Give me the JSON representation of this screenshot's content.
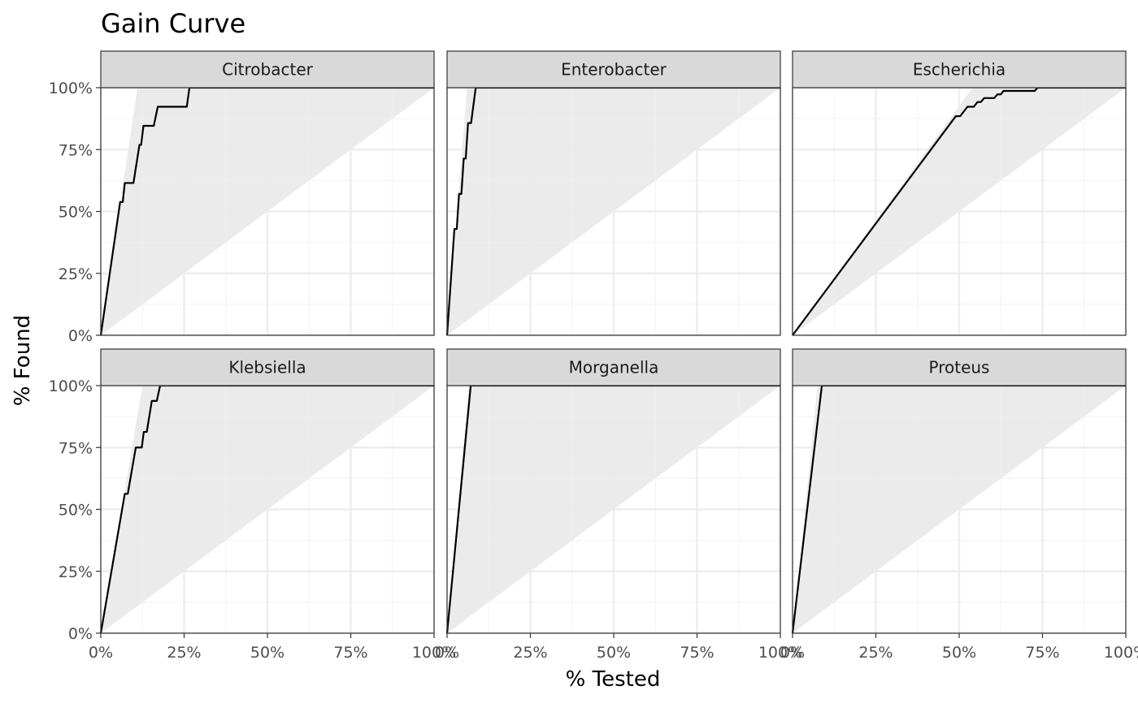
{
  "chart_data": {
    "type": "line",
    "title": "Gain Curve",
    "xlabel": "% Tested",
    "ylabel": "% Found",
    "xlim": [
      0,
      100
    ],
    "ylim": [
      0,
      100
    ],
    "grid": true,
    "x_tick_labels": [
      "0%",
      "25%",
      "50%",
      "75%",
      "100%"
    ],
    "y_tick_labels": [
      "0%",
      "25%",
      "50%",
      "75%",
      "100%"
    ],
    "colors": {
      "line": "#000000",
      "ribbon": "#ebebeb",
      "strip": "#d9d9d9",
      "grid_major": "#ebebeb",
      "grid_minor": "#f5f5f5",
      "border": "#333333"
    },
    "panels": [
      {
        "name": "Citrobacter",
        "optimal_x_at_100": 11,
        "series": [
          [
            0,
            0
          ],
          [
            5.8,
            53.8
          ],
          [
            6.6,
            53.8
          ],
          [
            7.2,
            61.5
          ],
          [
            9.8,
            61.5
          ],
          [
            11.6,
            76.9
          ],
          [
            12.1,
            76.9
          ],
          [
            12.8,
            84.6
          ],
          [
            15.9,
            84.6
          ],
          [
            17.1,
            92.3
          ],
          [
            25.8,
            92.3
          ],
          [
            26.6,
            100
          ],
          [
            100,
            100
          ]
        ]
      },
      {
        "name": "Enterobacter",
        "optimal_x_at_100": 6,
        "series": [
          [
            0,
            0
          ],
          [
            2.2,
            42.9
          ],
          [
            2.9,
            42.9
          ],
          [
            3.6,
            57.1
          ],
          [
            4.3,
            57.1
          ],
          [
            5.0,
            71.4
          ],
          [
            5.6,
            71.4
          ],
          [
            6.3,
            85.7
          ],
          [
            7.2,
            85.7
          ],
          [
            8.6,
            100
          ],
          [
            100,
            100
          ]
        ]
      },
      {
        "name": "Escherichia",
        "optimal_x_at_100": 54,
        "series": [
          [
            0,
            0
          ],
          [
            49,
            88.5
          ],
          [
            50.3,
            88.5
          ],
          [
            52.5,
            92.3
          ],
          [
            54.4,
            92.3
          ],
          [
            55.5,
            94.2
          ],
          [
            56.5,
            94.2
          ],
          [
            57.5,
            95.8
          ],
          [
            60.5,
            95.8
          ],
          [
            61.5,
            97.3
          ],
          [
            62.5,
            97.3
          ],
          [
            63.3,
            98.7
          ],
          [
            72.7,
            98.7
          ],
          [
            73.5,
            100
          ],
          [
            100,
            100
          ]
        ]
      },
      {
        "name": "Klebsiella",
        "optimal_x_at_100": 12.5,
        "series": [
          [
            0,
            0
          ],
          [
            7.2,
            56.3
          ],
          [
            8.1,
            56.3
          ],
          [
            10.5,
            75
          ],
          [
            12.3,
            75
          ],
          [
            12.9,
            81.3
          ],
          [
            13.8,
            81.3
          ],
          [
            15.3,
            93.8
          ],
          [
            16.8,
            93.8
          ],
          [
            17.8,
            100
          ],
          [
            100,
            100
          ]
        ]
      },
      {
        "name": "Morganella",
        "optimal_x_at_100": 6.5,
        "series": [
          [
            0,
            0
          ],
          [
            7.1,
            100
          ],
          [
            100,
            100
          ]
        ]
      },
      {
        "name": "Proteus",
        "optimal_x_at_100": 7.5,
        "series": [
          [
            0,
            0
          ],
          [
            8.8,
            100
          ],
          [
            100,
            100
          ]
        ]
      }
    ]
  }
}
